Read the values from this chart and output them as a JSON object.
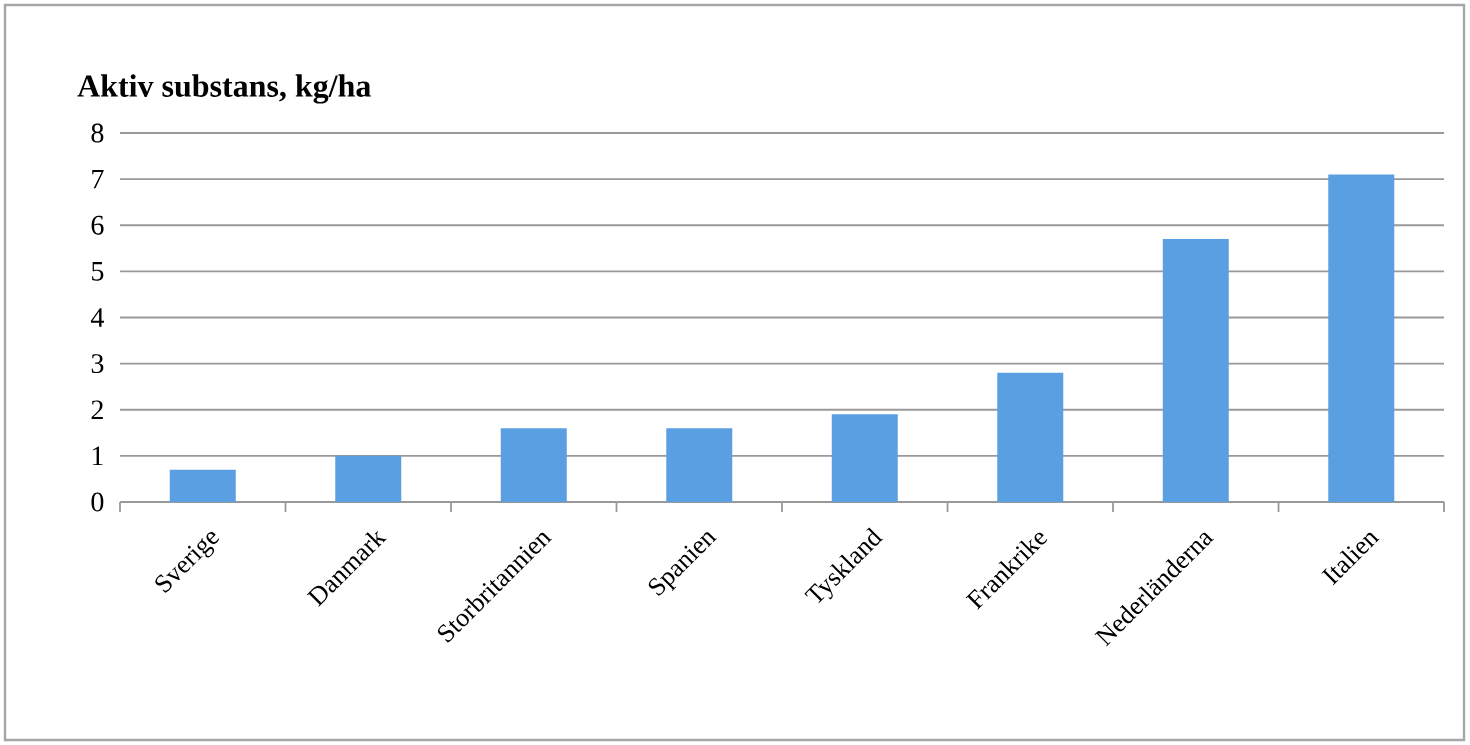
{
  "chart_data": {
    "type": "bar",
    "title": "Aktiv substans, kg/ha",
    "categories": [
      "Sverige",
      "Danmark",
      "Storbritannien",
      "Spanien",
      "Tyskland",
      "Frankrike",
      "Nederländerna",
      "Italien"
    ],
    "values": [
      0.7,
      1.0,
      1.6,
      1.6,
      1.9,
      2.8,
      5.7,
      7.1
    ],
    "color": "#5a9fe2",
    "ylim": [
      0,
      8
    ],
    "yticks": [
      0,
      1,
      2,
      3,
      4,
      5,
      6,
      7,
      8
    ],
    "grid": "y"
  }
}
